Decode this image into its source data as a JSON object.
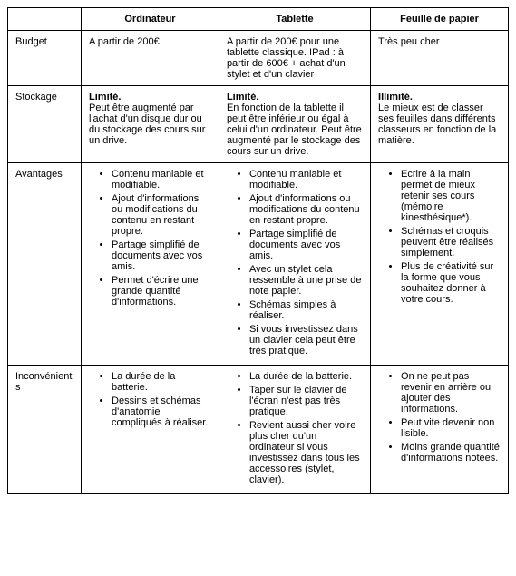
{
  "headers": {
    "blank": "",
    "c1": "Ordinateur",
    "c2": "Tablette",
    "c3": "Feuille de papier"
  },
  "rows": {
    "budget": {
      "label": "Budget",
      "c1": "A partir de 200€",
      "c2": "A partir de 200€ pour une tablette classique.\nIPad : à partir de 600€\n+ achat d'un stylet et d'un clavier",
      "c3": "Très peu cher"
    },
    "stockage": {
      "label": "Stockage",
      "c1_bold": "Limité.",
      "c1_rest": "Peut être augmenté par l'achat d'un disque dur ou du stockage des cours sur un drive.",
      "c2_bold": "Limité.",
      "c2_rest": "En fonction de la tablette il peut être inférieur ou égal à celui d'un ordinateur.\nPeut être augmenté par le stockage des cours sur un drive.",
      "c3_bold": "Illimité.",
      "c3_rest": "Le mieux est de classer ses feuilles dans différents classeurs en fonction de la matière."
    },
    "avantages": {
      "label": "Avantages",
      "c1": [
        "Contenu maniable et modifiable.",
        "Ajout d'informations ou modifications du contenu en restant propre.",
        "Partage simplifié de documents avec vos amis.",
        "Permet d'écrire une grande quantité d'informations."
      ],
      "c2": [
        "Contenu maniable et modifiable.",
        "Ajout d'informations ou modifications du contenu en restant propre.",
        "Partage simplifié de documents avec vos amis.",
        "Avec un stylet cela ressemble à une prise de note papier.",
        "Schémas simples à réaliser.",
        "Si vous investissez dans un clavier cela peut être très pratique."
      ],
      "c3": [
        "Ecrire à la main permet de mieux retenir ses cours (mémoire kinesthésique*).",
        "Schémas et croquis peuvent être réalisés simplement.",
        "Plus de créativité sur la forme que vous souhaitez donner à votre cours."
      ]
    },
    "inconvenients": {
      "label": "Inconvénients",
      "c1": [
        "La durée de la batterie.",
        "Dessins et schémas d'anatomie compliqués à réaliser."
      ],
      "c2": [
        "La durée de la batterie.",
        "Taper sur le clavier de l'écran n'est pas très pratique.",
        "Revient aussi cher voire plus cher qu'un ordinateur si vous investissez dans tous les accessoires (stylet, clavier)."
      ],
      "c3": [
        "On ne peut pas revenir en arrière ou ajouter des informations.",
        "Peut vite devenir non lisible.",
        "Moins grande quantité d'informations notées."
      ]
    }
  }
}
